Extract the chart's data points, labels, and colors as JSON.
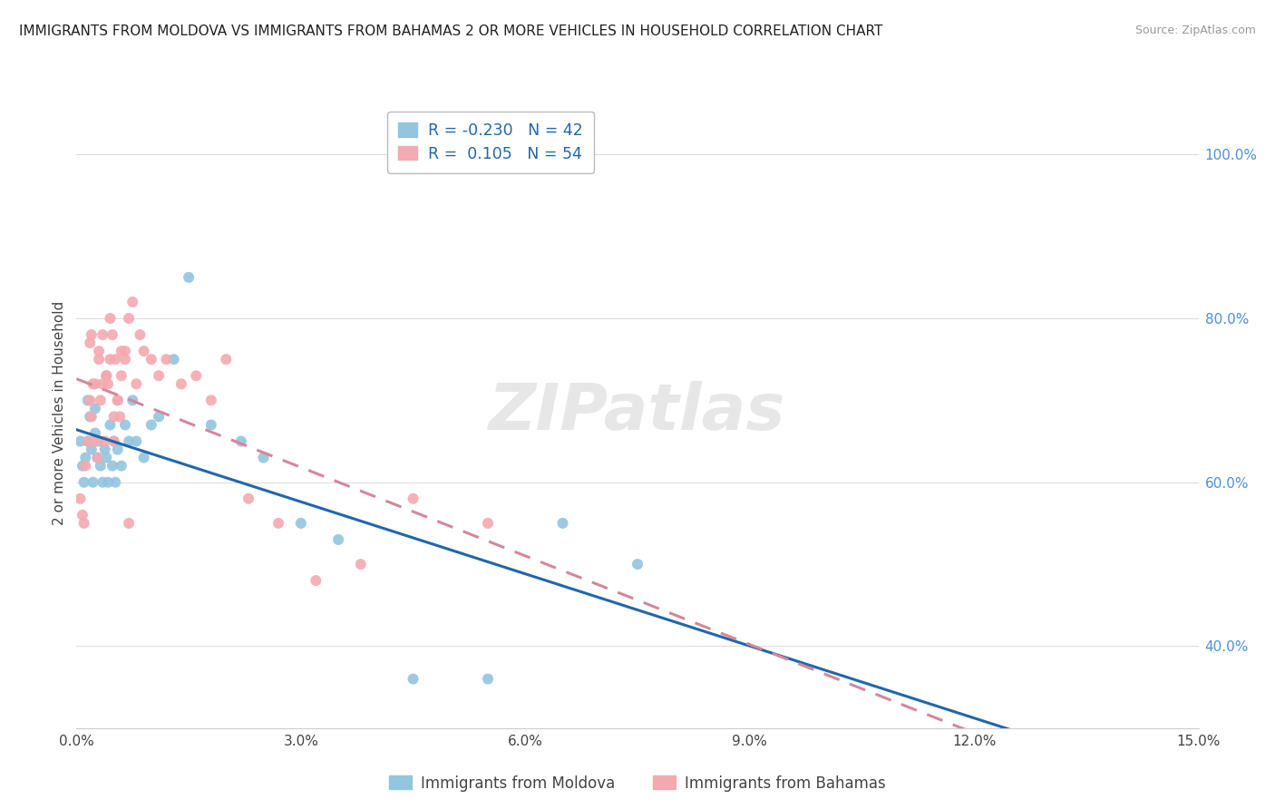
{
  "title": "IMMIGRANTS FROM MOLDOVA VS IMMIGRANTS FROM BAHAMAS 2 OR MORE VEHICLES IN HOUSEHOLD CORRELATION CHART",
  "source": "Source: ZipAtlas.com",
  "ylabel": "2 or more Vehicles in Household",
  "xlim": [
    0.0,
    15.0
  ],
  "ylim": [
    30.0,
    107.0
  ],
  "moldova_color": "#92c5de",
  "bahamas_color": "#f4a9b0",
  "moldova_line_color": "#2166ac",
  "bahamas_line_color": "#d4879a",
  "moldova_label": "Immigrants from Moldova",
  "bahamas_label": "Immigrants from Bahamas",
  "moldova_R": -0.23,
  "moldova_N": 42,
  "bahamas_R": 0.105,
  "bahamas_N": 54,
  "moldova_scatter_x": [
    0.05,
    0.08,
    0.1,
    0.12,
    0.15,
    0.18,
    0.2,
    0.22,
    0.25,
    0.28,
    0.3,
    0.32,
    0.35,
    0.38,
    0.4,
    0.42,
    0.45,
    0.48,
    0.5,
    0.52,
    0.55,
    0.6,
    0.65,
    0.7,
    0.75,
    0.8,
    0.9,
    1.0,
    1.1,
    1.3,
    1.5,
    1.8,
    2.2,
    2.5,
    3.0,
    3.5,
    4.5,
    5.5,
    6.5,
    7.5,
    0.15,
    0.25
  ],
  "moldova_scatter_y": [
    65,
    62,
    60,
    63,
    65,
    68,
    64,
    60,
    66,
    63,
    65,
    62,
    60,
    64,
    63,
    60,
    67,
    62,
    65,
    60,
    64,
    62,
    67,
    65,
    70,
    65,
    63,
    67,
    68,
    75,
    85,
    67,
    65,
    63,
    55,
    53,
    36,
    36,
    55,
    50,
    70,
    69
  ],
  "bahamas_scatter_x": [
    0.05,
    0.08,
    0.1,
    0.12,
    0.15,
    0.18,
    0.2,
    0.22,
    0.25,
    0.28,
    0.3,
    0.32,
    0.35,
    0.38,
    0.4,
    0.42,
    0.45,
    0.48,
    0.5,
    0.52,
    0.55,
    0.58,
    0.6,
    0.65,
    0.7,
    0.75,
    0.8,
    0.85,
    0.9,
    1.0,
    1.1,
    1.2,
    1.4,
    1.6,
    1.8,
    2.0,
    2.3,
    2.7,
    3.2,
    3.8,
    4.5,
    5.5,
    0.18,
    0.35,
    0.5,
    0.65,
    0.3,
    0.4,
    0.55,
    0.2,
    0.25,
    0.45,
    0.6,
    0.7
  ],
  "bahamas_scatter_y": [
    58,
    56,
    55,
    62,
    65,
    70,
    68,
    72,
    65,
    63,
    75,
    70,
    78,
    65,
    73,
    72,
    80,
    78,
    65,
    75,
    70,
    68,
    76,
    75,
    80,
    82,
    72,
    78,
    76,
    75,
    73,
    75,
    72,
    73,
    70,
    75,
    58,
    55,
    48,
    50,
    58,
    55,
    77,
    72,
    68,
    76,
    76,
    73,
    70,
    78,
    72,
    75,
    73,
    55
  ],
  "watermark": "ZIPatlas",
  "background_color": "#ffffff",
  "grid_color": "#dddddd",
  "yticks": [
    40,
    60,
    80,
    100
  ],
  "xticks": [
    0,
    3,
    6,
    9,
    12,
    15
  ]
}
